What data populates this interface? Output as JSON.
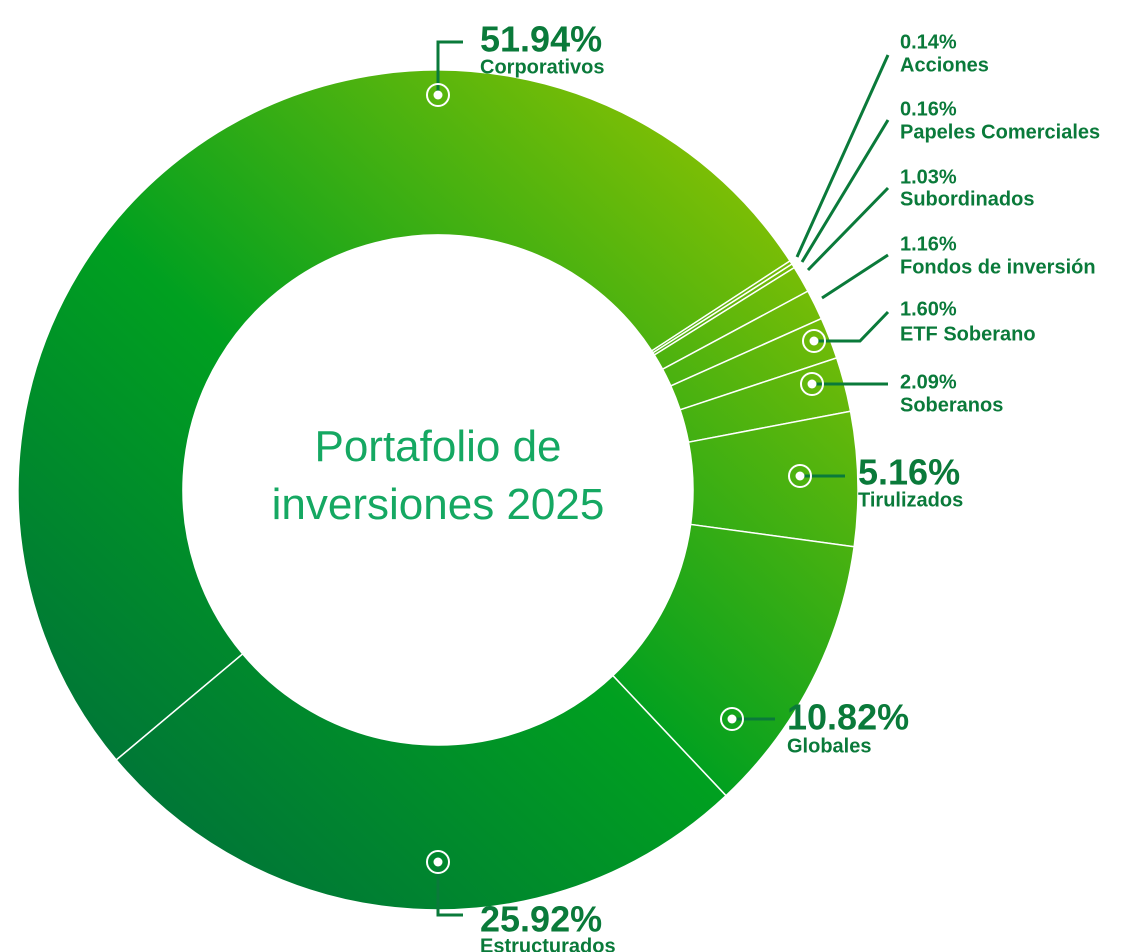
{
  "chart_data": {
    "type": "donut",
    "title": "Portafolio de inversiones 2025",
    "categories": [
      "Corporativos",
      "Acciones",
      "Papeles Comerciales",
      "Subordinados",
      "Fondos de inversión",
      "ETF Soberano",
      "Soberanos",
      "Tirulizados",
      "Globales",
      "Estructurados"
    ],
    "values": [
      51.94,
      0.14,
      0.16,
      1.03,
      1.16,
      1.6,
      2.09,
      5.16,
      10.82,
      25.92
    ],
    "value_labels": [
      "51.94%",
      "0.14%",
      "0.16%",
      "1.03%",
      "1.16%",
      "1.60%",
      "2.09%",
      "5.16%",
      "10.82%",
      "25.92%"
    ]
  }
}
